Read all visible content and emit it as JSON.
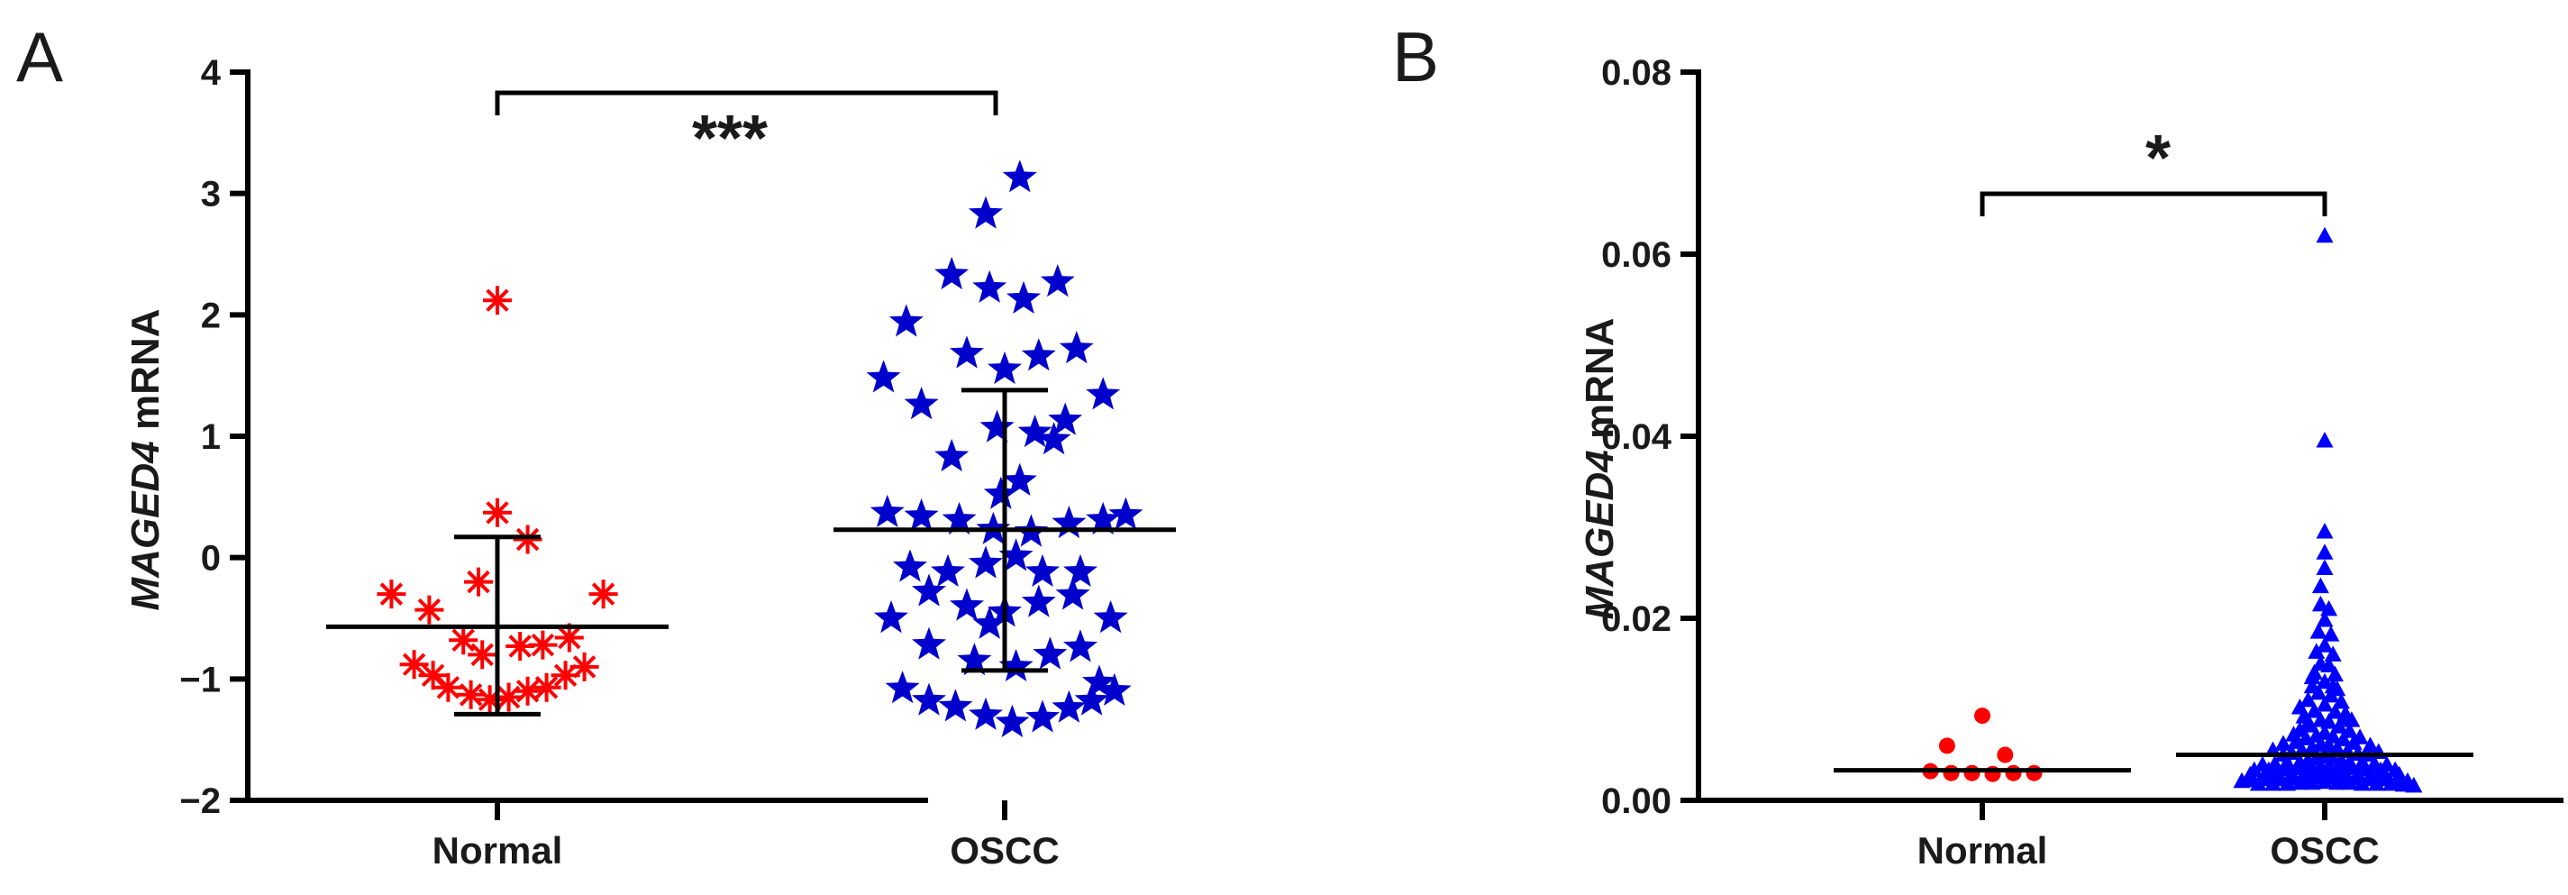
{
  "chart_data": [
    {
      "panel_label": "A",
      "type": "scatter",
      "ylabel_gene": "MAGED4",
      "ylabel_suffix": " mRNA",
      "ylim": [
        -2,
        4
      ],
      "yticks": [
        -2,
        -1,
        0,
        1,
        2,
        3,
        4
      ],
      "ytick_labels": [
        "−2",
        "−1",
        "0",
        "1",
        "2",
        "3",
        "4"
      ],
      "categories": [
        "Normal",
        "OSCC"
      ],
      "significance": "***",
      "series": [
        {
          "name": "Normal",
          "color": "#ff0000",
          "marker": "asterisk",
          "mean": -0.57,
          "sd_upper": 0.17,
          "sd_lower": -1.29,
          "points": [
            [
              0.0,
              2.12
            ],
            [
              0.0,
              0.37
            ],
            [
              0.08,
              0.15
            ],
            [
              -0.05,
              -0.2
            ],
            [
              -0.28,
              -0.3
            ],
            [
              0.28,
              -0.3
            ],
            [
              -0.18,
              -0.43
            ],
            [
              -0.22,
              -0.88
            ],
            [
              -0.17,
              -0.97
            ],
            [
              -0.13,
              -1.07
            ],
            [
              -0.07,
              -1.13
            ],
            [
              -0.02,
              -1.17
            ],
            [
              0.03,
              -1.15
            ],
            [
              0.08,
              -1.1
            ],
            [
              0.13,
              -1.07
            ],
            [
              0.18,
              -0.97
            ],
            [
              0.23,
              -0.9
            ],
            [
              -0.09,
              -0.68
            ],
            [
              -0.04,
              -0.8
            ],
            [
              0.06,
              -0.73
            ],
            [
              0.12,
              -0.72
            ],
            [
              0.19,
              -0.66
            ]
          ]
        },
        {
          "name": "OSCC",
          "color": "#0000cc",
          "marker": "star",
          "mean": 0.23,
          "sd_upper": 1.38,
          "sd_lower": -0.93,
          "points": [
            [
              0.04,
              3.13
            ],
            [
              -0.05,
              2.83
            ],
            [
              -0.14,
              2.33
            ],
            [
              -0.04,
              2.22
            ],
            [
              0.05,
              2.13
            ],
            [
              0.14,
              2.27
            ],
            [
              -0.26,
              1.94
            ],
            [
              -0.1,
              1.68
            ],
            [
              0.0,
              1.55
            ],
            [
              0.09,
              1.66
            ],
            [
              0.19,
              1.72
            ],
            [
              -0.32,
              1.48
            ],
            [
              -0.22,
              1.26
            ],
            [
              0.26,
              1.34
            ],
            [
              -0.02,
              1.07
            ],
            [
              0.08,
              1.03
            ],
            [
              0.16,
              1.13
            ],
            [
              0.13,
              0.97
            ],
            [
              -0.14,
              0.83
            ],
            [
              0.04,
              0.63
            ],
            [
              -0.01,
              0.52
            ],
            [
              -0.31,
              0.37
            ],
            [
              -0.22,
              0.34
            ],
            [
              -0.12,
              0.31
            ],
            [
              -0.03,
              0.23
            ],
            [
              0.07,
              0.21
            ],
            [
              0.17,
              0.28
            ],
            [
              0.26,
              0.31
            ],
            [
              0.32,
              0.35
            ],
            [
              -0.25,
              -0.08
            ],
            [
              -0.15,
              -0.12
            ],
            [
              -0.05,
              -0.05
            ],
            [
              0.03,
              0.01
            ],
            [
              0.1,
              -0.12
            ],
            [
              0.2,
              -0.12
            ],
            [
              -0.3,
              -0.5
            ],
            [
              -0.2,
              -0.28
            ],
            [
              -0.1,
              -0.4
            ],
            [
              0.0,
              -0.45
            ],
            [
              0.09,
              -0.37
            ],
            [
              0.18,
              -0.31
            ],
            [
              0.28,
              -0.5
            ],
            [
              -0.2,
              -0.72
            ],
            [
              -0.08,
              -0.85
            ],
            [
              0.03,
              -0.9
            ],
            [
              0.12,
              -0.8
            ],
            [
              0.2,
              -0.74
            ],
            [
              -0.27,
              -1.08
            ],
            [
              -0.2,
              -1.18
            ],
            [
              -0.13,
              -1.23
            ],
            [
              -0.05,
              -1.3
            ],
            [
              0.02,
              -1.36
            ],
            [
              0.1,
              -1.32
            ],
            [
              0.17,
              -1.24
            ],
            [
              0.23,
              -1.18
            ],
            [
              0.29,
              -1.1
            ],
            [
              0.25,
              -1.03
            ],
            [
              -0.04,
              -0.55
            ]
          ]
        }
      ]
    },
    {
      "panel_label": "B",
      "type": "scatter",
      "ylabel_gene": "MAGED4",
      "ylabel_suffix": " mRNA",
      "ylim": [
        0,
        0.08
      ],
      "yticks": [
        0,
        0.02,
        0.04,
        0.06,
        0.08
      ],
      "ytick_labels": [
        "0.00",
        "0.02",
        "0.04",
        "0.06",
        "0.08"
      ],
      "categories": [
        "Normal",
        "OSCC"
      ],
      "significance": "*",
      "series": [
        {
          "name": "Normal",
          "color": "#ff0000",
          "marker": "circle",
          "median": 0.0033,
          "points": [
            [
              0.0,
              0.0093
            ],
            [
              -0.17,
              0.006
            ],
            [
              0.11,
              0.005
            ],
            [
              -0.25,
              0.0032
            ],
            [
              -0.15,
              0.003
            ],
            [
              -0.05,
              0.003
            ],
            [
              0.05,
              0.0029
            ],
            [
              0.15,
              0.003
            ],
            [
              0.25,
              0.003
            ]
          ]
        },
        {
          "name": "OSCC",
          "color": "#0000ff",
          "marker": "triangle",
          "median": 0.005,
          "points_note": "dense cluster",
          "points": [
            [
              0.0,
              0.062
            ],
            [
              0.0,
              0.0395
            ],
            [
              0.0,
              0.0295
            ],
            [
              0.0,
              0.0272
            ],
            [
              0.0,
              0.0255
            ],
            [
              -0.02,
              0.0215
            ],
            [
              0.02,
              0.021
            ],
            [
              0.0,
              0.0198
            ],
            [
              -0.03,
              0.0185
            ],
            [
              0.03,
              0.0182
            ],
            [
              0.0,
              0.017
            ],
            [
              -0.04,
              0.0163
            ],
            [
              0.04,
              0.016
            ],
            [
              -0.02,
              0.015
            ],
            [
              0.02,
              0.0148
            ],
            [
              -0.05,
              0.014
            ],
            [
              0.05,
              0.0138
            ],
            [
              0.0,
              0.013
            ],
            [
              -0.06,
              0.0125
            ],
            [
              0.06,
              0.0122
            ],
            [
              -0.03,
              0.0118
            ],
            [
              0.03,
              0.0115
            ],
            [
              -0.08,
              0.011
            ],
            [
              0.08,
              0.0108
            ],
            [
              0.0,
              0.0105
            ],
            [
              -0.05,
              0.0098
            ],
            [
              0.05,
              0.0097
            ],
            [
              -0.1,
              0.0092
            ],
            [
              0.1,
              0.009
            ],
            [
              -0.02,
              0.0088
            ],
            [
              0.02,
              0.0086
            ],
            [
              -0.07,
              0.0082
            ],
            [
              0.07,
              0.0081
            ],
            [
              -0.12,
              0.0077
            ],
            [
              0.12,
              0.0076
            ],
            [
              0.0,
              0.0074
            ],
            [
              -0.04,
              0.0071
            ],
            [
              0.04,
              0.007
            ],
            [
              -0.09,
              0.0068
            ],
            [
              0.09,
              0.0067
            ],
            [
              -0.14,
              0.0064
            ],
            [
              0.14,
              0.0063
            ],
            [
              -0.02,
              0.0061
            ],
            [
              0.02,
              0.006
            ],
            [
              -0.06,
              0.0058
            ],
            [
              0.06,
              0.0057
            ],
            [
              -0.11,
              0.0055
            ],
            [
              0.11,
              0.0054
            ],
            [
              -0.16,
              0.0052
            ],
            [
              0.16,
              0.0051
            ],
            [
              -0.2,
              0.005
            ],
            [
              0.2,
              0.005
            ],
            [
              0.0,
              0.0048
            ],
            [
              -0.04,
              0.0046
            ],
            [
              0.04,
              0.0046
            ],
            [
              -0.08,
              0.0044
            ],
            [
              0.08,
              0.0044
            ],
            [
              -0.12,
              0.0042
            ],
            [
              0.12,
              0.0042
            ],
            [
              -0.18,
              0.0041
            ],
            [
              0.18,
              0.0041
            ],
            [
              -0.24,
              0.004
            ],
            [
              0.24,
              0.004
            ],
            [
              -0.3,
              0.0039
            ],
            [
              0.3,
              0.0039
            ],
            [
              -0.02,
              0.0037
            ],
            [
              0.02,
              0.0037
            ],
            [
              -0.07,
              0.0036
            ],
            [
              0.07,
              0.0036
            ],
            [
              -0.13,
              0.0035
            ],
            [
              0.13,
              0.0035
            ],
            [
              -0.2,
              0.0034
            ],
            [
              0.2,
              0.0034
            ],
            [
              -0.27,
              0.0033
            ],
            [
              0.27,
              0.0033
            ],
            [
              -0.34,
              0.0033
            ],
            [
              0.34,
              0.0033
            ],
            [
              0.0,
              0.003
            ],
            [
              -0.05,
              0.003
            ],
            [
              0.05,
              0.003
            ],
            [
              -0.1,
              0.0029
            ],
            [
              0.1,
              0.0029
            ],
            [
              -0.16,
              0.0029
            ],
            [
              0.16,
              0.0029
            ],
            [
              -0.23,
              0.0028
            ],
            [
              0.23,
              0.0028
            ],
            [
              -0.29,
              0.0028
            ],
            [
              0.29,
              0.0028
            ],
            [
              -0.36,
              0.0028
            ],
            [
              0.36,
              0.0028
            ],
            [
              -0.03,
              0.0025
            ],
            [
              0.03,
              0.0025
            ],
            [
              -0.09,
              0.0024
            ],
            [
              0.09,
              0.0024
            ],
            [
              -0.15,
              0.0024
            ],
            [
              0.15,
              0.0024
            ],
            [
              -0.21,
              0.0023
            ],
            [
              0.21,
              0.0023
            ],
            [
              -0.28,
              0.0023
            ],
            [
              0.28,
              0.0023
            ],
            [
              0.35,
              0.0022
            ],
            [
              -0.35,
              0.0022
            ],
            [
              0.4,
              0.0021
            ],
            [
              -0.4,
              0.0021
            ],
            [
              0.0,
              0.002
            ],
            [
              -0.06,
              0.0019
            ],
            [
              0.06,
              0.0019
            ],
            [
              -0.12,
              0.0019
            ],
            [
              0.12,
              0.0019
            ],
            [
              -0.18,
              0.0018
            ],
            [
              0.18,
              0.0018
            ],
            [
              -0.25,
              0.0018
            ],
            [
              0.25,
              0.0018
            ],
            [
              -0.32,
              0.0018
            ],
            [
              0.32,
              0.0018
            ],
            [
              0.38,
              0.0017
            ],
            [
              0.43,
              0.0016
            ],
            [
              -0.08,
              0.0085
            ],
            [
              0.1,
              0.0095
            ],
            [
              -0.12,
              0.0102
            ],
            [
              0.13,
              0.0088
            ],
            [
              -0.15,
              0.0072
            ],
            [
              0.17,
              0.0069
            ],
            [
              -0.2,
              0.0062
            ],
            [
              0.22,
              0.006
            ],
            [
              -0.25,
              0.0055
            ],
            [
              0.26,
              0.0053
            ],
            [
              -0.02,
              0.0235
            ],
            [
              0.04,
              0.0125
            ],
            [
              -0.06,
              0.0135
            ]
          ]
        }
      ]
    }
  ]
}
